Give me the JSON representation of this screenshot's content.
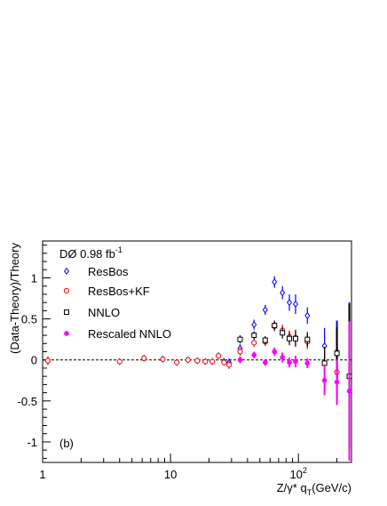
{
  "chart_data": {
    "type": "scatter",
    "title": "",
    "annotation": "DØ 0.98 fb",
    "annotation_sup": "-1",
    "panel_label": "(b)",
    "xlabel": "Z/γ* q",
    "xlabel_sub": "T",
    "xlabel_unit": "(GeV/c)",
    "ylabel": "(Data-Theory)/Theory",
    "x_scale": "log",
    "xlim": [
      1,
      260
    ],
    "ylim": [
      -1.25,
      1.45
    ],
    "x_ticks": [
      {
        "value": 1,
        "label": "1",
        "sup": ""
      },
      {
        "value": 10,
        "label": "10",
        "sup": ""
      },
      {
        "value": 100,
        "label": "10",
        "sup": "2"
      }
    ],
    "y_ticks": [
      {
        "value": -1,
        "label": "-1"
      },
      {
        "value": -0.5,
        "label": "-0.5"
      },
      {
        "value": 0,
        "label": "0"
      },
      {
        "value": 0.5,
        "label": "0.5"
      },
      {
        "value": 1,
        "label": "1"
      }
    ],
    "reference_line": 0,
    "grid": false,
    "legend_position": "top-left",
    "series": [
      {
        "name": "ResBos",
        "marker": "diamond-open",
        "color": "#0000ff",
        "points": [
          {
            "x": 1.1,
            "y": -0.01,
            "err": 0.05
          },
          {
            "x": 4.0,
            "y": -0.02,
            "err": 0.02
          },
          {
            "x": 6.2,
            "y": 0.02,
            "err": 0.03
          },
          {
            "x": 8.7,
            "y": 0.01,
            "err": 0.03
          },
          {
            "x": 11.2,
            "y": -0.03,
            "err": 0.03
          },
          {
            "x": 13.7,
            "y": 0.0,
            "err": 0.03
          },
          {
            "x": 16.2,
            "y": -0.01,
            "err": 0.03
          },
          {
            "x": 18.7,
            "y": -0.02,
            "err": 0.03
          },
          {
            "x": 21.2,
            "y": -0.02,
            "err": 0.03
          },
          {
            "x": 23.7,
            "y": 0.05,
            "err": 0.03
          },
          {
            "x": 26.2,
            "y": -0.02,
            "err": 0.04
          },
          {
            "x": 28.7,
            "y": -0.03,
            "err": 0.05
          },
          {
            "x": 35,
            "y": 0.14,
            "err": 0.05
          },
          {
            "x": 45,
            "y": 0.43,
            "err": 0.06
          },
          {
            "x": 55,
            "y": 0.61,
            "err": 0.06
          },
          {
            "x": 65,
            "y": 0.95,
            "err": 0.07
          },
          {
            "x": 75,
            "y": 0.82,
            "err": 0.08
          },
          {
            "x": 85,
            "y": 0.7,
            "err": 0.1
          },
          {
            "x": 95,
            "y": 0.68,
            "err": 0.12
          },
          {
            "x": 117.5,
            "y": 0.54,
            "err": 0.1
          },
          {
            "x": 160,
            "y": 0.17,
            "err": 0.22
          },
          {
            "x": 200,
            "y": 0.1,
            "err": 0.38
          },
          {
            "x": 250,
            "y": -0.2,
            "err": 0.9
          }
        ]
      },
      {
        "name": "ResBos+KF",
        "marker": "circle-open",
        "color": "#ff0000",
        "points": [
          {
            "x": 1.1,
            "y": -0.01,
            "err": 0.05
          },
          {
            "x": 4.0,
            "y": -0.02,
            "err": 0.02
          },
          {
            "x": 6.2,
            "y": 0.02,
            "err": 0.03
          },
          {
            "x": 8.7,
            "y": 0.01,
            "err": 0.03
          },
          {
            "x": 11.2,
            "y": -0.03,
            "err": 0.03
          },
          {
            "x": 13.7,
            "y": 0.0,
            "err": 0.03
          },
          {
            "x": 16.2,
            "y": -0.01,
            "err": 0.03
          },
          {
            "x": 18.7,
            "y": -0.02,
            "err": 0.03
          },
          {
            "x": 21.2,
            "y": -0.02,
            "err": 0.03
          },
          {
            "x": 23.7,
            "y": 0.05,
            "err": 0.03
          },
          {
            "x": 26.2,
            "y": -0.03,
            "err": 0.04
          },
          {
            "x": 28.7,
            "y": -0.06,
            "err": 0.05
          },
          {
            "x": 35,
            "y": 0.1,
            "err": 0.05
          },
          {
            "x": 45,
            "y": 0.21,
            "err": 0.05
          },
          {
            "x": 55,
            "y": 0.22,
            "err": 0.05
          },
          {
            "x": 65,
            "y": 0.41,
            "err": 0.06
          },
          {
            "x": 75,
            "y": 0.36,
            "err": 0.07
          },
          {
            "x": 85,
            "y": 0.28,
            "err": 0.08
          },
          {
            "x": 95,
            "y": 0.27,
            "err": 0.1
          },
          {
            "x": 117.5,
            "y": 0.22,
            "err": 0.09
          },
          {
            "x": 160,
            "y": -0.04,
            "err": 0.2
          },
          {
            "x": 200,
            "y": -0.15,
            "err": 0.32
          },
          {
            "x": 250,
            "y": -0.2,
            "err": 0.85
          }
        ]
      },
      {
        "name": "NNLO",
        "marker": "square-open",
        "color": "#000000",
        "points": [
          {
            "x": 35,
            "y": 0.25,
            "err": 0.05
          },
          {
            "x": 45,
            "y": 0.3,
            "err": 0.05
          },
          {
            "x": 55,
            "y": 0.24,
            "err": 0.05
          },
          {
            "x": 65,
            "y": 0.42,
            "err": 0.06
          },
          {
            "x": 75,
            "y": 0.33,
            "err": 0.07
          },
          {
            "x": 85,
            "y": 0.26,
            "err": 0.08
          },
          {
            "x": 95,
            "y": 0.26,
            "err": 0.1
          },
          {
            "x": 117.5,
            "y": 0.25,
            "err": 0.09
          },
          {
            "x": 160,
            "y": -0.04,
            "err": 0.2
          },
          {
            "x": 200,
            "y": 0.08,
            "err": 0.32
          },
          {
            "x": 250,
            "y": -0.2,
            "err": 0.88
          }
        ]
      },
      {
        "name": "Rescaled NNLO",
        "marker": "circle-filled",
        "color": "#ff00ff",
        "points": [
          {
            "x": 35,
            "y": 0.0,
            "err": 0.04
          },
          {
            "x": 45,
            "y": 0.06,
            "err": 0.04
          },
          {
            "x": 55,
            "y": -0.03,
            "err": 0.04
          },
          {
            "x": 65,
            "y": 0.1,
            "err": 0.05
          },
          {
            "x": 75,
            "y": 0.03,
            "err": 0.06
          },
          {
            "x": 85,
            "y": -0.03,
            "err": 0.06
          },
          {
            "x": 95,
            "y": -0.02,
            "err": 0.07
          },
          {
            "x": 117.5,
            "y": -0.04,
            "err": 0.06
          },
          {
            "x": 160,
            "y": -0.25,
            "err": 0.18
          },
          {
            "x": 200,
            "y": -0.27,
            "err": 0.28
          },
          {
            "x": 250,
            "y": -0.38,
            "err": 0.85
          }
        ]
      }
    ]
  }
}
